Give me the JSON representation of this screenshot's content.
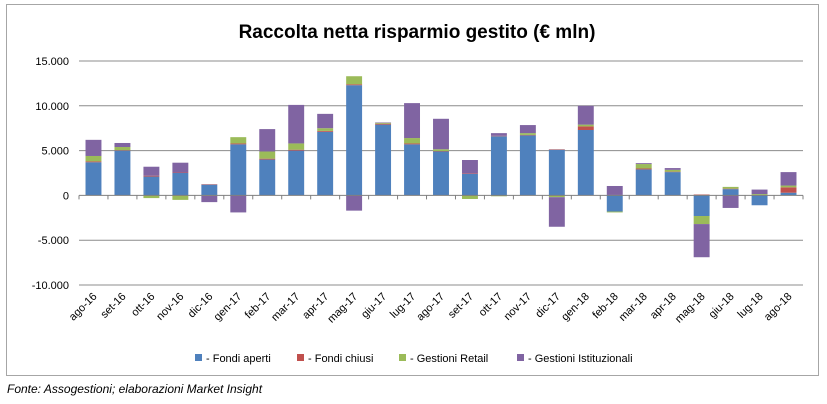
{
  "chart_data": {
    "type": "bar",
    "stacked": true,
    "title": "Raccolta netta risparmio gestito (€ mln)",
    "categories": [
      "ago-16",
      "set-16",
      "ott-16",
      "nov-16",
      "dic-16",
      "gen-17",
      "feb-17",
      "mar-17",
      "apr-17",
      "mag-17",
      "giu-17",
      "lug-17",
      "ago-17",
      "set-17",
      "ott-17",
      "nov-17",
      "dic-17",
      "gen-18",
      "feb-18",
      "mar-18",
      "apr-18",
      "mag-18",
      "giu-18",
      "lug-18",
      "ago-18"
    ],
    "ylim": [
      -10000,
      15000
    ],
    "yticks": [
      -10000,
      -5000,
      0,
      5000,
      10000,
      15000
    ],
    "ytick_labels": [
      "-10.000",
      "-5.000",
      "0",
      "5.000",
      "10.000",
      "15.000"
    ],
    "grid": true,
    "legend_position": "bottom",
    "series": [
      {
        "name": "- Fondi aperti",
        "color": "#4f81bd",
        "values": [
          3700,
          5000,
          2100,
          2500,
          1200,
          5700,
          4000,
          5000,
          7100,
          12300,
          7900,
          5700,
          4900,
          2400,
          6600,
          6700,
          5100,
          7300,
          -1800,
          2900,
          2600,
          -2300,
          700,
          -1100,
          300
        ]
      },
      {
        "name": "- Fondi chiusi",
        "color": "#c0504d",
        "values": [
          100,
          50,
          100,
          50,
          50,
          100,
          100,
          100,
          100,
          100,
          100,
          100,
          50,
          50,
          50,
          50,
          50,
          400,
          50,
          100,
          50,
          100,
          50,
          50,
          600
        ]
      },
      {
        "name": "- Gestioni Retail",
        "color": "#9bbb59",
        "values": [
          600,
          350,
          -300,
          -500,
          -50,
          700,
          800,
          700,
          300,
          900,
          100,
          600,
          200,
          -400,
          -100,
          200,
          -200,
          200,
          -100,
          500,
          200,
          -900,
          200,
          100,
          200
        ]
      },
      {
        "name": "- Gestioni Istituzionali",
        "color": "#8064a2",
        "values": [
          1800,
          450,
          1000,
          1100,
          -700,
          -1900,
          2500,
          4300,
          1600,
          -1700,
          50,
          3900,
          3400,
          1500,
          300,
          900,
          -3300,
          2100,
          1000,
          100,
          200,
          -3700,
          -1400,
          500,
          1500
        ]
      }
    ]
  },
  "source_note": "Fonte: Assogestioni; elaborazioni Market Insight"
}
